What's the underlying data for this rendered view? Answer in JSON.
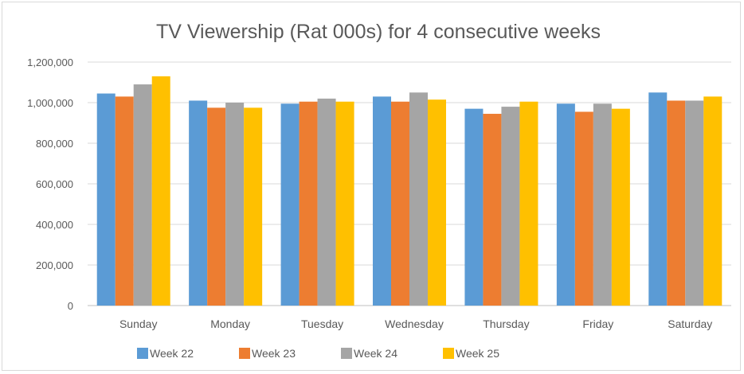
{
  "chart_data": {
    "type": "bar",
    "title": "TV Viewership (Rat 000s) for 4 consecutive weeks",
    "xlabel": "",
    "ylabel": "",
    "ylim": [
      0,
      1200000
    ],
    "yticks": [
      "0",
      "200,000",
      "400,000",
      "600,000",
      "800,000",
      "1,000,000",
      "1,200,000"
    ],
    "categories": [
      "Sunday",
      "Monday",
      "Tuesday",
      "Wednesday",
      "Thursday",
      "Friday",
      "Saturday"
    ],
    "series": [
      {
        "name": "Week 22",
        "color": "#5B9BD5",
        "values": [
          1045000,
          1010000,
          995000,
          1030000,
          970000,
          995000,
          1050000
        ]
      },
      {
        "name": "Week 23",
        "color": "#ED7D31",
        "values": [
          1030000,
          975000,
          1005000,
          1005000,
          945000,
          955000,
          1010000
        ]
      },
      {
        "name": "Week 24",
        "color": "#A5A5A5",
        "values": [
          1090000,
          1000000,
          1020000,
          1050000,
          980000,
          995000,
          1010000
        ]
      },
      {
        "name": "Week 25",
        "color": "#FFC000",
        "values": [
          1130000,
          975000,
          1005000,
          1015000,
          1005000,
          970000,
          1030000
        ]
      }
    ],
    "grid": true,
    "legend": "bottom-left"
  }
}
